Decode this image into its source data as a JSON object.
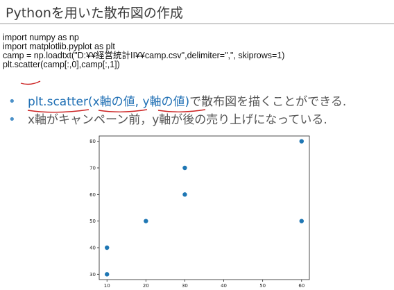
{
  "slide": {
    "title": "Pythonを用いた散布図の作成"
  },
  "code": {
    "lines": [
      "import numpy as np",
      "import matplotlib.pyplot as plt",
      "camp = np.loadtxt(\"D:¥¥経営統計II¥¥camp.csv\",delimiter=\",\", skiprows=1)",
      "plt.scatter(camp[:,0],camp[:,1])"
    ]
  },
  "bullets": [
    {
      "parts": [
        "plt.scatter(x軸の値, y軸の値)",
        "で散布図を描くことができる."
      ]
    },
    {
      "parts": [
        "x軸がキャンペーン前，y軸が後の売り上げになっている."
      ]
    }
  ],
  "colors": {
    "accent": "#1f6fb4",
    "point": "#1f77b4",
    "underline": "#cc2222"
  },
  "chart_data": {
    "type": "scatter",
    "x": [
      10,
      10,
      20,
      30,
      30,
      60,
      60
    ],
    "y": [
      30,
      40,
      50,
      60,
      70,
      80,
      50
    ],
    "xticks": [
      10,
      20,
      30,
      40,
      50,
      60
    ],
    "yticks": [
      30,
      40,
      50,
      60,
      70,
      80
    ],
    "xlim": [
      8,
      62
    ],
    "ylim": [
      28,
      82
    ],
    "grid": false
  }
}
